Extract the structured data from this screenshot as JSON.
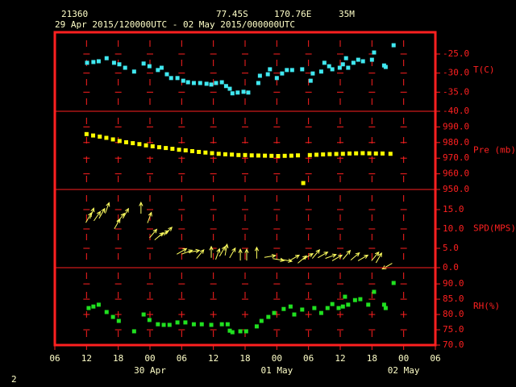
{
  "header": {
    "station": "21360",
    "latitude": "77.45S",
    "longitude": "170.76E",
    "elevation": "35M",
    "period": "29 Apr 2015/120000UTC - 02 May 2015/000000UTC"
  },
  "x_axis": {
    "xlim": [
      0,
      72
    ],
    "xticks": [
      {
        "value": 0,
        "label": "06"
      },
      {
        "value": 6,
        "label": "12"
      },
      {
        "value": 12,
        "label": "18"
      },
      {
        "value": 18,
        "label": "00"
      },
      {
        "value": 24,
        "label": "06"
      },
      {
        "value": 30,
        "label": "12"
      },
      {
        "value": 36,
        "label": "18"
      },
      {
        "value": 42,
        "label": "00"
      },
      {
        "value": 48,
        "label": "06"
      },
      {
        "value": 54,
        "label": "12"
      },
      {
        "value": 60,
        "label": "18"
      },
      {
        "value": 66,
        "label": "00"
      },
      {
        "value": 72,
        "label": "06"
      }
    ],
    "date_labels": [
      {
        "value": 18,
        "label": "30 Apr"
      },
      {
        "value": 42,
        "label": "01 May"
      },
      {
        "value": 66,
        "label": "02 May"
      }
    ]
  },
  "chart_data": [
    {
      "type": "scatter",
      "y_label": "T(C)",
      "color": "#40e8f0",
      "ylim": [
        -40,
        -19.3
      ],
      "yticks": [
        {
          "value": -25,
          "label": "-25.0"
        },
        {
          "value": -30,
          "label": "-30.0"
        },
        {
          "value": -35,
          "label": "-35.0"
        },
        {
          "value": -40,
          "label": "-40.0"
        }
      ],
      "x": [
        6.1,
        7.3,
        8.3,
        9.8,
        11.2,
        12.2,
        13.3,
        15.0,
        16.8,
        17.9,
        19.5,
        20.2,
        21.2,
        22.0,
        23.2,
        24.3,
        25.2,
        26.3,
        27.5,
        28.7,
        29.6,
        30.5,
        31.6,
        32.4,
        33.1,
        33.6,
        34.6,
        35.7,
        36.6,
        38.5,
        38.8,
        40.3,
        40.7,
        42.0,
        43.0,
        43.9,
        44.9,
        46.8,
        48.4,
        48.8,
        50.4,
        51.0,
        51.9,
        52.5,
        53.9,
        54.5,
        55.1,
        55.5,
        56.5,
        57.4,
        58.3,
        60.0,
        60.4,
        62.3,
        62.6,
        64.1
      ],
      "values": [
        -27.3,
        -27.1,
        -26.9,
        -26.1,
        -27.3,
        -27.7,
        -28.6,
        -29.6,
        -27.5,
        -28.2,
        -29.2,
        -28.6,
        -30.3,
        -31.3,
        -31.3,
        -32.0,
        -32.4,
        -32.6,
        -32.6,
        -32.8,
        -33.0,
        -32.6,
        -32.4,
        -33.4,
        -34.1,
        -35.3,
        -35.1,
        -34.9,
        -35.1,
        -32.6,
        -30.7,
        -30.3,
        -29.0,
        -31.3,
        -30.1,
        -29.2,
        -29.2,
        -29.0,
        -32.0,
        -30.1,
        -29.6,
        -27.3,
        -28.2,
        -29.0,
        -28.6,
        -27.7,
        -26.1,
        -28.6,
        -27.3,
        -26.5,
        -26.9,
        -26.5,
        -24.6,
        -28.0,
        -28.4,
        -22.7
      ]
    },
    {
      "type": "scatter",
      "y_label": "Pre (mb)",
      "color": "#ffff00",
      "ylim": [
        950,
        1000
      ],
      "yticks": [
        {
          "value": 990,
          "label": "990.0"
        },
        {
          "value": 980,
          "label": "980.0"
        },
        {
          "value": 970,
          "label": "970.0"
        },
        {
          "value": 960,
          "label": "960.0"
        },
        {
          "value": 950,
          "label": "950.0"
        }
      ],
      "x": [
        6,
        7.25,
        8.5,
        9.75,
        11,
        12.25,
        13.5,
        14.75,
        16,
        17.25,
        18.5,
        19.75,
        21,
        22.25,
        23.5,
        24.75,
        26,
        27.25,
        28.5,
        29.75,
        31,
        32.25,
        33.5,
        34.75,
        36,
        37.25,
        38.5,
        39.75,
        41,
        42.25,
        43.5,
        44.75,
        46,
        47,
        48.25,
        49.5,
        50.75,
        52,
        53.25,
        54.5,
        55.75,
        57,
        58.25,
        59.5,
        60.75,
        62,
        63.5
      ],
      "values": [
        985.4,
        984.5,
        983.8,
        983,
        982,
        981,
        980.2,
        979.6,
        979,
        978.2,
        977.6,
        977,
        976.5,
        976,
        975.4,
        975,
        974.5,
        974,
        973.6,
        973.2,
        972.8,
        972.5,
        972.3,
        972,
        972,
        971.8,
        971.7,
        971.6,
        971.5,
        971.4,
        971.5,
        971.6,
        971.8,
        954.1,
        972,
        972.2,
        972.4,
        972.6,
        972.7,
        972.8,
        973,
        973.1,
        973.2,
        973.1,
        973,
        973,
        972.8
      ]
    },
    {
      "type": "wind",
      "y_label": "SPD(MPS)",
      "color": "#ffff60",
      "ylim": [
        0,
        20.2
      ],
      "yticks": [
        {
          "value": 15,
          "label": "15.0"
        },
        {
          "value": 10,
          "label": "10.0"
        },
        {
          "value": 5,
          "label": "5.0"
        },
        {
          "value": 0,
          "label": "0.0"
        }
      ],
      "x": [
        6.4,
        7.0,
        8.0,
        8.9,
        9.9,
        11.8,
        12.5,
        13.4,
        16.3,
        17.9,
        18.6,
        19.7,
        20.6,
        21.4,
        24.0,
        25.0,
        26.3,
        27.5,
        29.6,
        30.8,
        31.7,
        32.4,
        33.6,
        35.1,
        36.3,
        38.2,
        40.7,
        42.3,
        43.8,
        45.3,
        46.8,
        47.9,
        49.4,
        50.7,
        52.2,
        53.4,
        55.2,
        56.8,
        58.3,
        60.6,
        61.3,
        62.9
      ],
      "values": [
        12.9,
        14.0,
        13.3,
        14.0,
        15.4,
        11.3,
        12.9,
        14.0,
        15.4,
        12.9,
        8.8,
        8.1,
        8.8,
        9.4,
        4.2,
        4.0,
        4.2,
        3.5,
        4.0,
        3.5,
        4.2,
        4.6,
        3.8,
        3.3,
        3.3,
        3.8,
        2.9,
        2.1,
        1.9,
        2.5,
        2.1,
        2.9,
        3.5,
        3.3,
        2.9,
        2.5,
        3.3,
        2.9,
        2.5,
        2.9,
        2.5,
        0.4
      ],
      "directions": [
        30,
        20,
        35,
        30,
        20,
        30,
        40,
        30,
        0,
        20,
        40,
        50,
        60,
        45,
        60,
        70,
        80,
        40,
        0,
        20,
        30,
        10,
        30,
        0,
        0,
        0,
        80,
        100,
        100,
        60,
        50,
        60,
        40,
        60,
        70,
        60,
        40,
        50,
        60,
        40,
        30,
        240
      ]
    },
    {
      "type": "scatter",
      "y_label": "RH(%)",
      "color": "#20e020",
      "ylim": [
        70,
        95.3
      ],
      "yticks": [
        {
          "value": 90,
          "label": "90.0"
        },
        {
          "value": 85,
          "label": "85.0"
        },
        {
          "value": 80,
          "label": "80.0"
        },
        {
          "value": 75,
          "label": "75.0"
        },
        {
          "value": 70,
          "label": "70.0"
        }
      ],
      "x": [
        6.4,
        7.3,
        8.3,
        9.8,
        11.0,
        12.1,
        15.0,
        16.8,
        17.9,
        19.5,
        20.6,
        21.7,
        23.2,
        24.7,
        26.3,
        27.8,
        29.6,
        31.6,
        32.7,
        33.1,
        33.6,
        35.1,
        36.2,
        38.2,
        39.1,
        40.4,
        41.5,
        43.3,
        44.6,
        45.3,
        46.8,
        49.1,
        50.4,
        51.6,
        52.5,
        53.7,
        54.5,
        54.9,
        55.5,
        56.8,
        57.8,
        59.3,
        60.4,
        62.3,
        62.6,
        64.1
      ],
      "values": [
        82.1,
        82.6,
        83.2,
        80.8,
        79.2,
        77.9,
        74.5,
        80.0,
        78.2,
        76.8,
        76.6,
        76.6,
        77.4,
        77.4,
        76.8,
        76.8,
        76.6,
        76.8,
        76.8,
        74.7,
        74.2,
        74.5,
        74.5,
        76.1,
        77.9,
        79.2,
        80.5,
        81.8,
        82.6,
        80.0,
        81.6,
        82.1,
        80.5,
        82.1,
        83.4,
        82.1,
        82.6,
        85.8,
        83.2,
        84.7,
        85.0,
        83.2,
        87.4,
        83.2,
        82.1,
        90.3
      ]
    }
  ],
  "page_number": "2"
}
